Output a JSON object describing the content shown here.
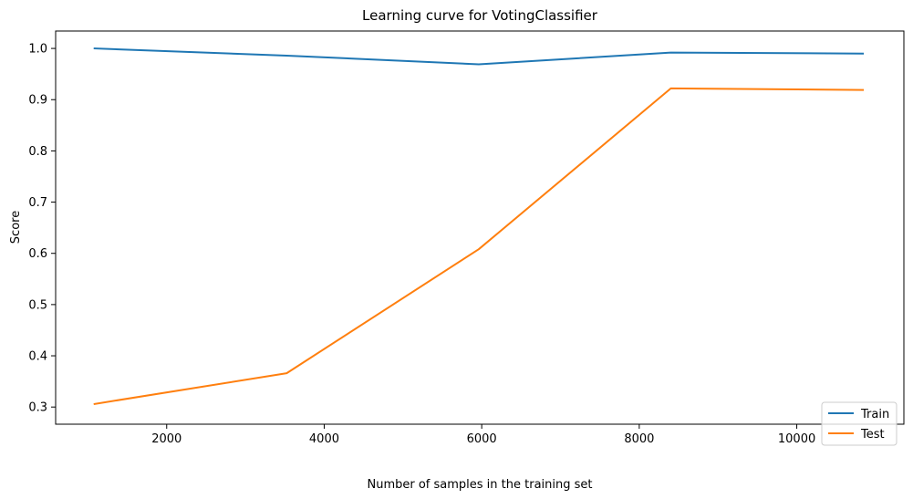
{
  "chart_data": {
    "type": "line",
    "title": "Learning curve for VotingClassifier",
    "xlabel": "Number of samples in the training set",
    "ylabel": "Score",
    "xlim": [
      590,
      11360
    ],
    "ylim": [
      0.2665,
      1.034
    ],
    "xticks": [
      2000,
      4000,
      6000,
      8000,
      10000
    ],
    "yticks": [
      0.3,
      0.4,
      0.5,
      0.6,
      0.7,
      0.8,
      0.9,
      1.0
    ],
    "grid": false,
    "legend_position": "lower-right",
    "series": [
      {
        "name": "Train",
        "color": "#1f77b4",
        "x": [
          1084,
          3523,
          5962,
          8401,
          10840
        ],
        "y": [
          1.0,
          0.986,
          0.969,
          0.992,
          0.99
        ]
      },
      {
        "name": "Test",
        "color": "#ff7f0e",
        "x": [
          1084,
          3523,
          5962,
          8401,
          10840
        ],
        "y": [
          0.306,
          0.366,
          0.608,
          0.922,
          0.919
        ]
      }
    ]
  }
}
